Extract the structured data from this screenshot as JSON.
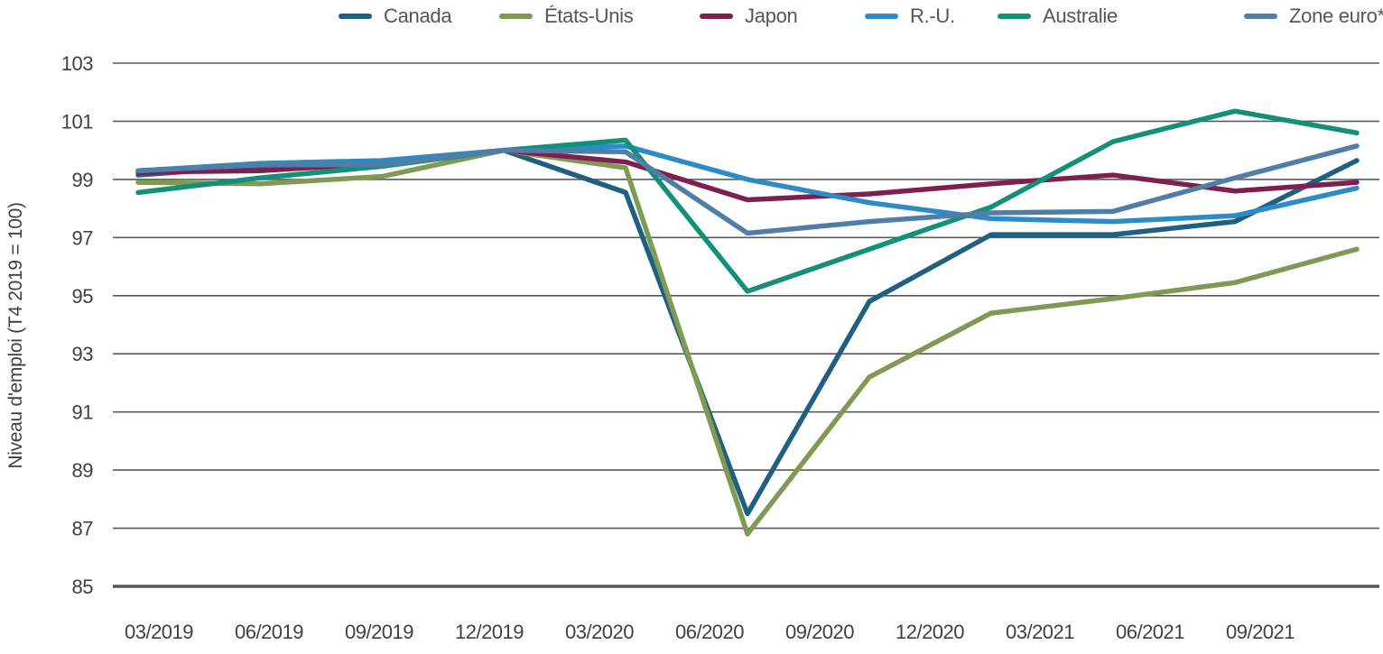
{
  "chart_data": {
    "type": "line",
    "title": "",
    "ylabel": "Niveau d'emploi (T4 2019 = 100)",
    "xlabel": "",
    "x_labels": [
      "03/2019",
      "06/2019",
      "09/2019",
      "12/2019",
      "03/2020",
      "06/2020",
      "09/2020",
      "12/2020",
      "03/2021",
      "06/2021",
      "09/2021"
    ],
    "ylim": [
      85,
      103
    ],
    "yticks": [
      85,
      87,
      89,
      91,
      93,
      95,
      97,
      99,
      101,
      103
    ],
    "grid": "horizontal",
    "legend_position": "top",
    "series": [
      {
        "name": "Canada",
        "color": "#1f6082",
        "values": [
          99.15,
          99.45,
          99.6,
          100,
          98.55,
          87.5,
          94.8,
          97.1,
          97.1,
          97.55,
          99.65
        ]
      },
      {
        "name": "États-Unis",
        "color": "#7f9a52",
        "values": [
          98.9,
          98.85,
          99.1,
          100,
          99.4,
          86.8,
          92.2,
          94.4,
          94.9,
          95.45,
          96.6
        ]
      },
      {
        "name": "Japon",
        "color": "#7e1f4f",
        "values": [
          99.25,
          99.3,
          99.55,
          100,
          99.6,
          98.3,
          98.5,
          98.85,
          99.15,
          98.6,
          98.9
        ]
      },
      {
        "name": "R.-U.",
        "color": "#2d8cc8",
        "values": [
          99.3,
          99.55,
          99.65,
          100,
          100.15,
          99.0,
          98.2,
          97.65,
          97.55,
          97.75,
          98.7
        ]
      },
      {
        "name": "Australie",
        "color": "#12907a",
        "values": [
          98.55,
          99.05,
          99.45,
          100,
          100.35,
          95.15,
          96.6,
          98.05,
          100.3,
          101.35,
          100.6
        ]
      },
      {
        "name": "Zone euro*",
        "color": "#507ea6",
        "values": [
          99.3,
          99.5,
          99.5,
          100,
          99.95,
          97.15,
          97.55,
          97.85,
          97.9,
          99.05,
          100.15
        ]
      }
    ]
  },
  "colors": {
    "grid": "#595a5c",
    "baseline": "#55565a",
    "axis_text": "#414042",
    "legend_text": "#55565a"
  }
}
